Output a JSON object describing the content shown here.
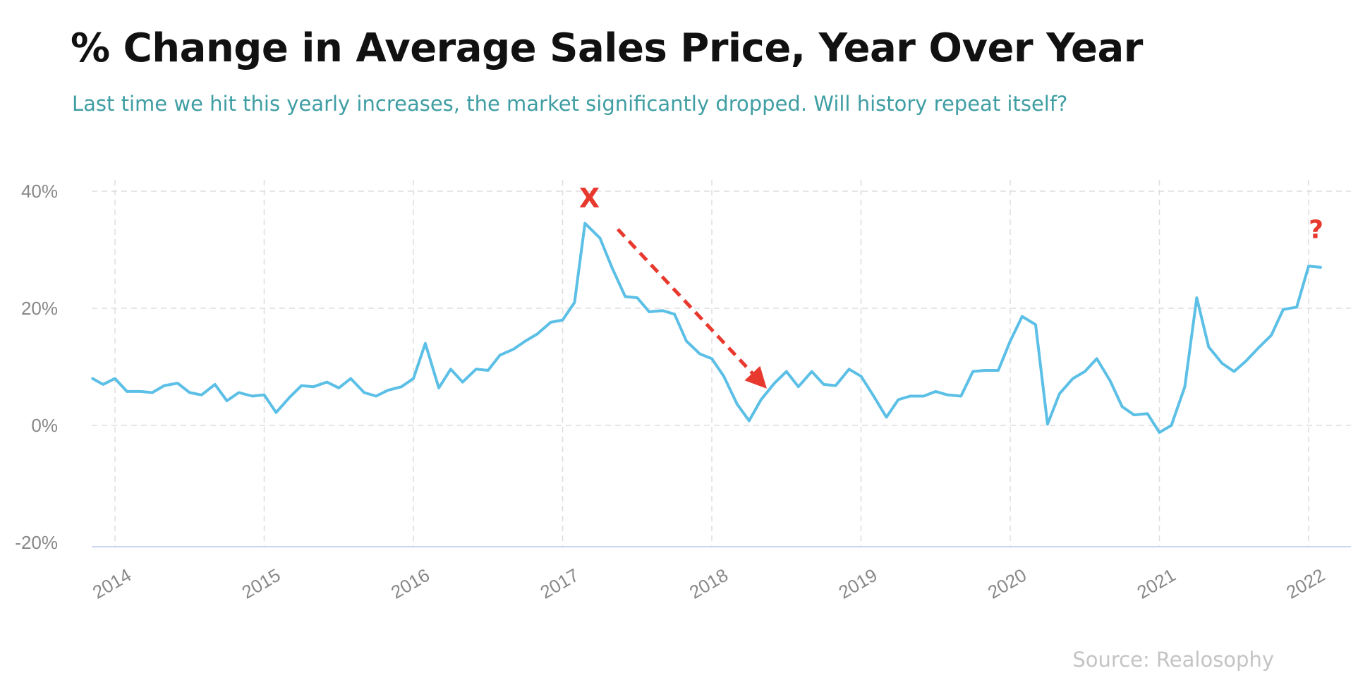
{
  "title": "% Change in Average Sales Price, Year Over Year",
  "subtitle": "Last time we hit this yearly increases, the market significantly dropped. Will history repeat itself?",
  "source": "Source: Realosophy",
  "colors": {
    "line": "#5bbfe6",
    "annotation": "#e8392f",
    "subtitle": "#3f9ea3"
  },
  "chart_data": {
    "type": "line",
    "title": "% Change in Average Sales Price, Year Over Year",
    "xlabel": "",
    "ylabel": "",
    "ylim": [
      -20,
      40
    ],
    "xlim": [
      2013.85,
      2022.1
    ],
    "grid": true,
    "legend": "none",
    "y_ticks": [
      {
        "value": 40,
        "label": "40%"
      },
      {
        "value": 20,
        "label": "20%"
      },
      {
        "value": 0,
        "label": "0%"
      },
      {
        "value": -20,
        "label": "-20%"
      }
    ],
    "x_ticks": [
      {
        "value": 2014,
        "label": "2014"
      },
      {
        "value": 2015,
        "label": "2015"
      },
      {
        "value": 2016,
        "label": "2016"
      },
      {
        "value": 2017,
        "label": "2017"
      },
      {
        "value": 2018,
        "label": "2018"
      },
      {
        "value": 2019,
        "label": "2019"
      },
      {
        "value": 2020,
        "label": "2020"
      },
      {
        "value": 2021,
        "label": "2021"
      },
      {
        "value": 2022,
        "label": "2022"
      }
    ],
    "series": [
      {
        "points": [
          [
            2013.85,
            8.0
          ],
          [
            2013.92,
            7.0
          ],
          [
            2014.0,
            8.0
          ],
          [
            2014.08,
            5.8
          ],
          [
            2014.17,
            5.8
          ],
          [
            2014.25,
            5.6
          ],
          [
            2014.33,
            6.8
          ],
          [
            2014.42,
            7.2
          ],
          [
            2014.5,
            5.6
          ],
          [
            2014.58,
            5.2
          ],
          [
            2014.67,
            7.0
          ],
          [
            2014.75,
            4.2
          ],
          [
            2014.83,
            5.6
          ],
          [
            2014.92,
            5.0
          ],
          [
            2015.0,
            5.2
          ],
          [
            2015.08,
            2.2
          ],
          [
            2015.17,
            4.8
          ],
          [
            2015.25,
            6.8
          ],
          [
            2015.33,
            6.6
          ],
          [
            2015.42,
            7.4
          ],
          [
            2015.5,
            6.4
          ],
          [
            2015.58,
            8.0
          ],
          [
            2015.67,
            5.6
          ],
          [
            2015.75,
            5.0
          ],
          [
            2015.83,
            6.0
          ],
          [
            2015.92,
            6.6
          ],
          [
            2016.0,
            8.0
          ],
          [
            2016.08,
            14.0
          ],
          [
            2016.17,
            6.4
          ],
          [
            2016.25,
            9.6
          ],
          [
            2016.33,
            7.4
          ],
          [
            2016.42,
            9.6
          ],
          [
            2016.5,
            9.4
          ],
          [
            2016.58,
            12.0
          ],
          [
            2016.67,
            13.0
          ],
          [
            2016.75,
            14.4
          ],
          [
            2016.83,
            15.6
          ],
          [
            2016.92,
            17.6
          ],
          [
            2017.0,
            18.0
          ],
          [
            2017.08,
            21.0
          ],
          [
            2017.15,
            34.5
          ],
          [
            2017.25,
            32.0
          ],
          [
            2017.33,
            27.0
          ],
          [
            2017.42,
            22.0
          ],
          [
            2017.5,
            21.8
          ],
          [
            2017.58,
            19.4
          ],
          [
            2017.67,
            19.6
          ],
          [
            2017.75,
            19.0
          ],
          [
            2017.83,
            14.4
          ],
          [
            2017.92,
            12.2
          ],
          [
            2018.0,
            11.4
          ],
          [
            2018.08,
            8.4
          ],
          [
            2018.17,
            3.6
          ],
          [
            2018.25,
            0.8
          ],
          [
            2018.33,
            4.4
          ],
          [
            2018.42,
            7.2
          ],
          [
            2018.5,
            9.2
          ],
          [
            2018.58,
            6.6
          ],
          [
            2018.67,
            9.2
          ],
          [
            2018.75,
            7.0
          ],
          [
            2018.83,
            6.8
          ],
          [
            2018.92,
            9.6
          ],
          [
            2019.0,
            8.4
          ],
          [
            2019.08,
            5.2
          ],
          [
            2019.17,
            1.4
          ],
          [
            2019.25,
            4.4
          ],
          [
            2019.33,
            5.0
          ],
          [
            2019.42,
            5.0
          ],
          [
            2019.5,
            5.8
          ],
          [
            2019.58,
            5.2
          ],
          [
            2019.67,
            5.0
          ],
          [
            2019.75,
            9.2
          ],
          [
            2019.83,
            9.4
          ],
          [
            2019.92,
            9.4
          ],
          [
            2020.0,
            14.4
          ],
          [
            2020.08,
            18.6
          ],
          [
            2020.17,
            17.2
          ],
          [
            2020.25,
            0.2
          ],
          [
            2020.33,
            5.4
          ],
          [
            2020.42,
            8.0
          ],
          [
            2020.5,
            9.2
          ],
          [
            2020.58,
            11.4
          ],
          [
            2020.67,
            7.6
          ],
          [
            2020.75,
            3.2
          ],
          [
            2020.83,
            1.8
          ],
          [
            2020.92,
            2.0
          ],
          [
            2021.0,
            -1.2
          ],
          [
            2021.08,
            0.0
          ],
          [
            2021.17,
            6.6
          ],
          [
            2021.25,
            21.8
          ],
          [
            2021.33,
            13.4
          ],
          [
            2021.42,
            10.6
          ],
          [
            2021.5,
            9.2
          ],
          [
            2021.58,
            11.0
          ],
          [
            2021.67,
            13.4
          ],
          [
            2021.75,
            15.4
          ],
          [
            2021.83,
            19.8
          ],
          [
            2021.92,
            20.2
          ],
          [
            2022.0,
            27.2
          ],
          [
            2022.08,
            27.0
          ]
        ]
      }
    ],
    "annotations": [
      {
        "type": "text",
        "text": "X",
        "x": 2017.18,
        "y": 37.2
      },
      {
        "type": "arrow",
        "from": [
          2017.37,
          33.5
        ],
        "to": [
          2018.32,
          7.6
        ]
      },
      {
        "type": "text",
        "text": "?",
        "x": 2022.05,
        "y": 32.0
      }
    ]
  }
}
